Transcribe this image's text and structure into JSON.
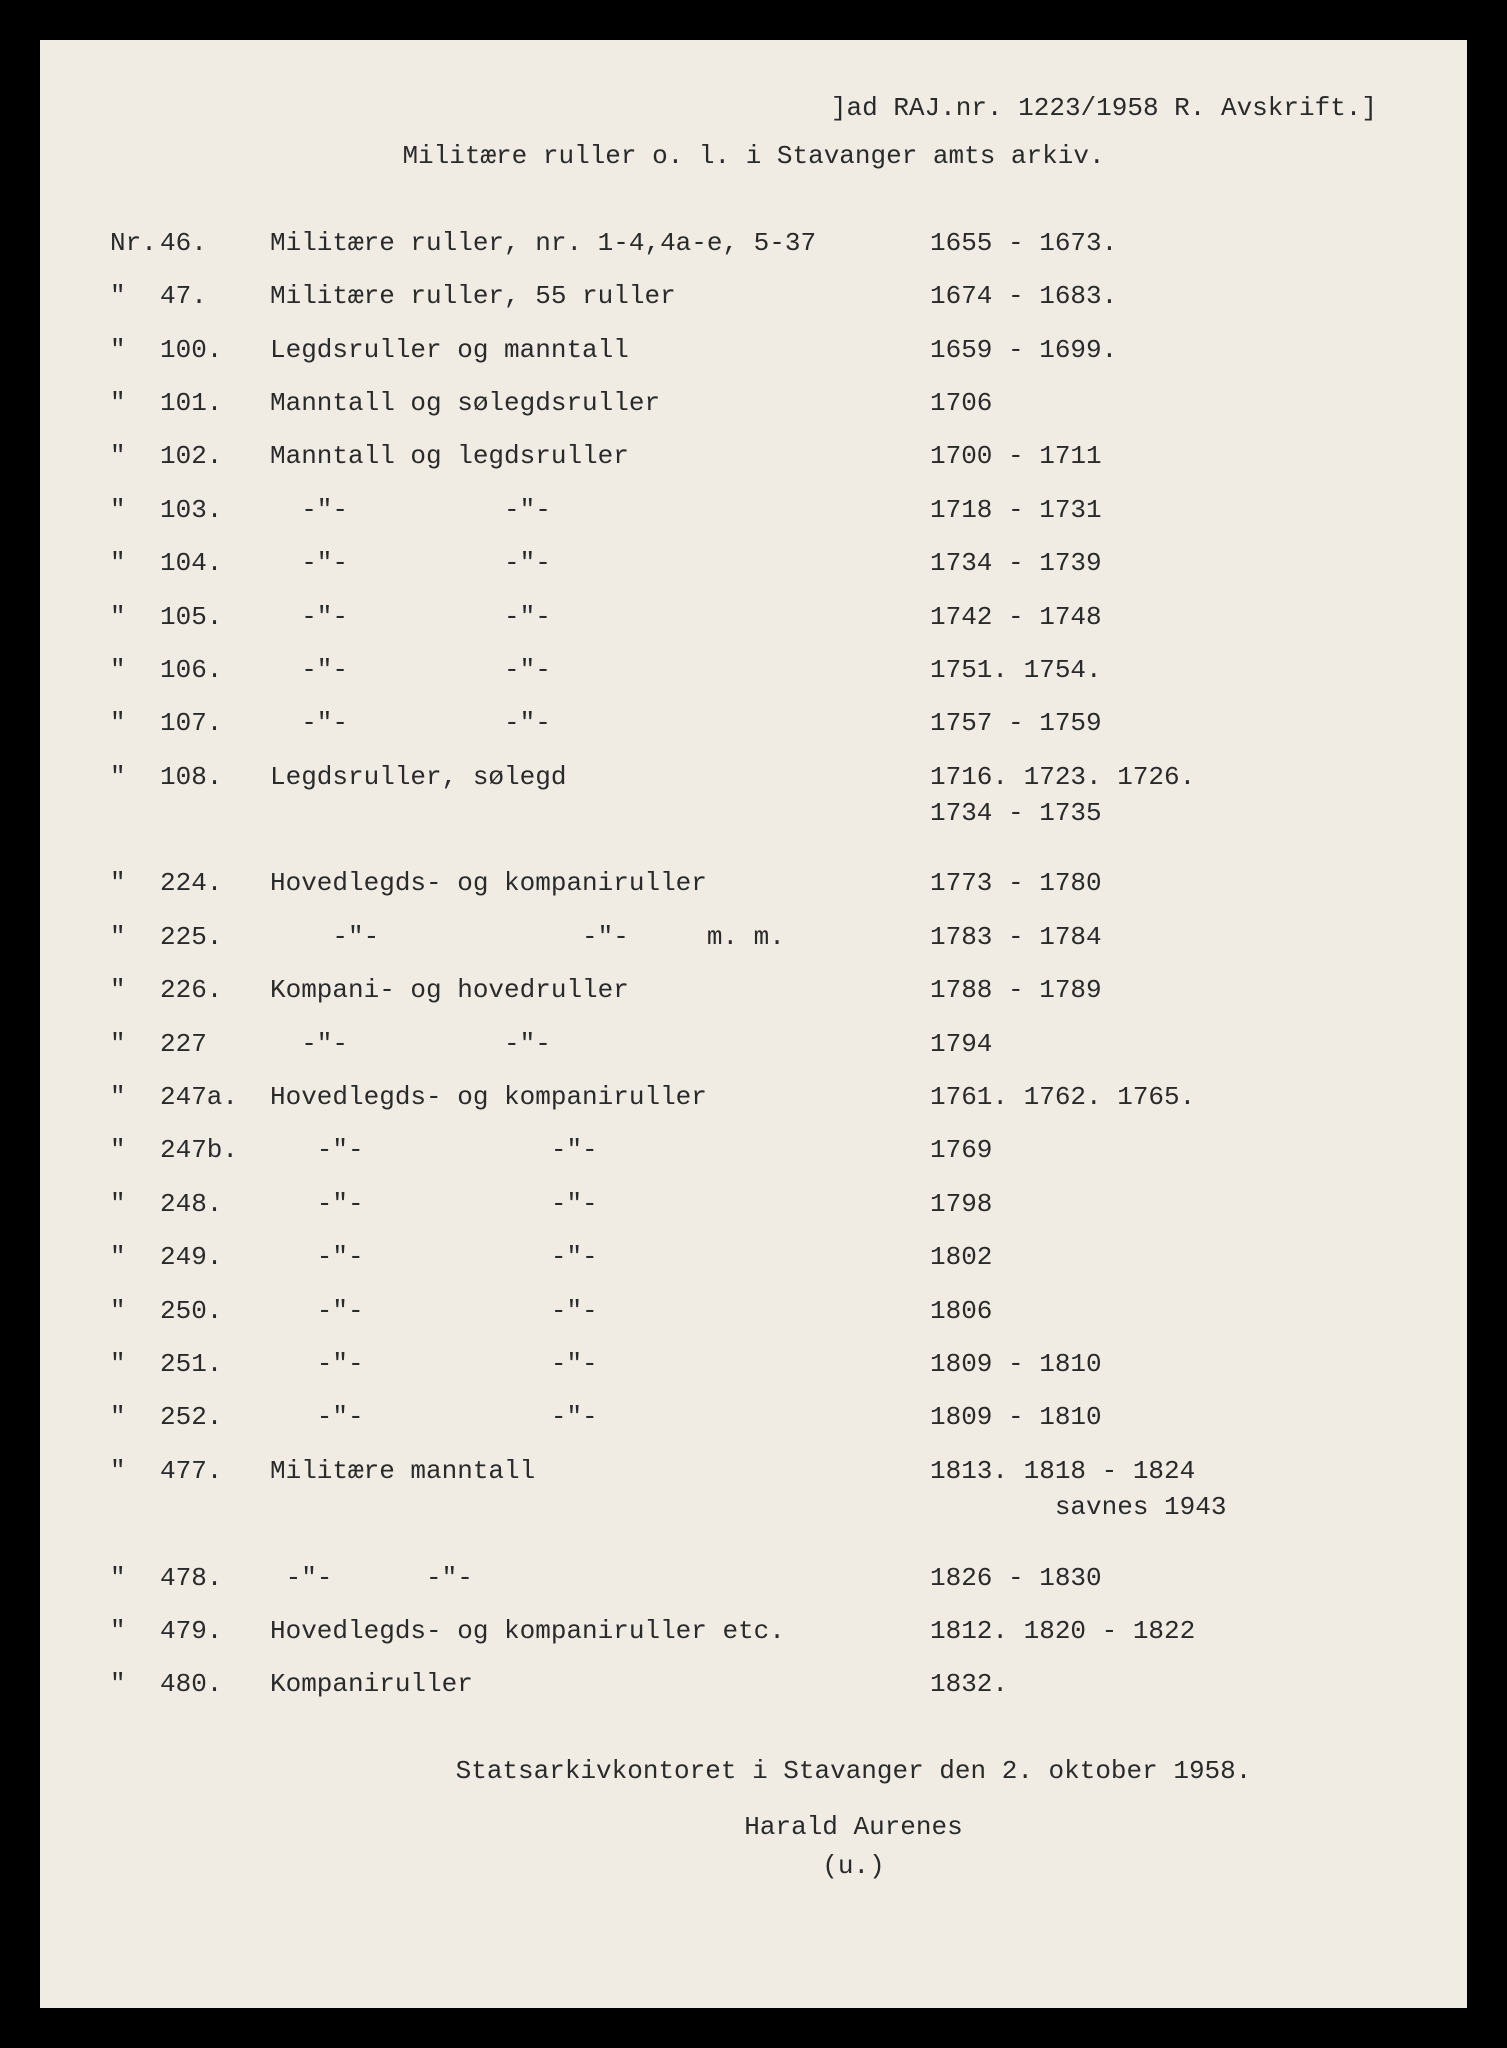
{
  "header": "]ad RAJ.nr. 1223/1958 R.  Avskrift.]",
  "subtitle": "Militære ruller o. l. i Stavanger amts arkiv.",
  "rows": [
    {
      "prefix": "Nr.",
      "num": "46.",
      "desc": "Militære ruller, nr. 1-4,4a-e, 5-37",
      "year": "1655 - 1673."
    },
    {
      "prefix": "\"",
      "num": "47.",
      "desc": "Militære ruller, 55 ruller",
      "year": "1674 - 1683."
    },
    {
      "prefix": "\"",
      "num": "100.",
      "desc": "Legdsruller og manntall",
      "year": "1659 - 1699."
    },
    {
      "prefix": "\"",
      "num": "101.",
      "desc": "Manntall og sølegdsruller",
      "year": "1706"
    },
    {
      "prefix": "\"",
      "num": "102.",
      "desc": "Manntall og legdsruller",
      "year": "1700 - 1711"
    },
    {
      "prefix": "\"",
      "num": "103.",
      "desc": "  -\"-          -\"-",
      "year": "1718 - 1731"
    },
    {
      "prefix": "\"",
      "num": "104.",
      "desc": "  -\"-          -\"-",
      "year": "1734 - 1739"
    },
    {
      "prefix": "\"",
      "num": "105.",
      "desc": "  -\"-          -\"-",
      "year": "1742 - 1748"
    },
    {
      "prefix": "\"",
      "num": "106.",
      "desc": "  -\"-          -\"-",
      "year": "1751. 1754."
    },
    {
      "prefix": "\"",
      "num": "107.",
      "desc": "  -\"-          -\"-",
      "year": "1757 - 1759"
    },
    {
      "prefix": "\"",
      "num": "108.",
      "desc": "Legdsruller, sølegd",
      "year": "1716. 1723. 1726.\n1734 - 1735",
      "tall": true
    },
    {
      "prefix": "\"",
      "num": "224.",
      "desc": "Hovedlegds- og kompaniruller",
      "year": "1773 - 1780"
    },
    {
      "prefix": "\"",
      "num": "225.",
      "desc": "    -\"-             -\"-     m. m.",
      "year": "1783 - 1784"
    },
    {
      "prefix": "\"",
      "num": "226.",
      "desc": "Kompani- og hovedruller",
      "year": "1788 - 1789"
    },
    {
      "prefix": "\"",
      "num": "227",
      "desc": "  -\"-          -\"-",
      "year": "1794"
    },
    {
      "prefix": "\"",
      "num": "247a.",
      "desc": "Hovedlegds- og kompaniruller",
      "year": "1761. 1762. 1765."
    },
    {
      "prefix": "\"",
      "num": "247b.",
      "desc": "   -\"-            -\"-",
      "year": "1769"
    },
    {
      "prefix": "\"",
      "num": "248.",
      "desc": "   -\"-            -\"-",
      "year": "1798"
    },
    {
      "prefix": "\"",
      "num": "249.",
      "desc": "   -\"-            -\"-",
      "year": "1802"
    },
    {
      "prefix": "\"",
      "num": "250.",
      "desc": "   -\"-            -\"-",
      "year": "1806"
    },
    {
      "prefix": "\"",
      "num": "251.",
      "desc": "   -\"-            -\"-",
      "year": "1809 - 1810"
    },
    {
      "prefix": "\"",
      "num": "252.",
      "desc": "   -\"-            -\"-",
      "year": "1809 - 1810"
    },
    {
      "prefix": "\"",
      "num": "477.",
      "desc": "Militære manntall",
      "year": "1813. 1818 - 1824\n        savnes 1943",
      "tall": true
    },
    {
      "prefix": "\"",
      "num": "478.",
      "desc": " -\"-      -\"-",
      "year": "1826 - 1830"
    },
    {
      "prefix": "\"",
      "num": "479.",
      "desc": "Hovedlegds- og kompaniruller etc.",
      "year": "1812. 1820 - 1822"
    },
    {
      "prefix": "\"",
      "num": "480.",
      "desc": "Kompaniruller",
      "year": "1832."
    }
  ],
  "footer1": "Statsarkivkontoret i Stavanger den 2. oktober 1958.",
  "footer2": "Harald Aurenes",
  "footer3": "(u.)",
  "colors": {
    "page_bg": "#f0ece4",
    "outer_bg": "#000000",
    "text": "#2a2a2a"
  },
  "typography": {
    "font_family": "Courier New, monospace",
    "font_size_pt": 20
  }
}
